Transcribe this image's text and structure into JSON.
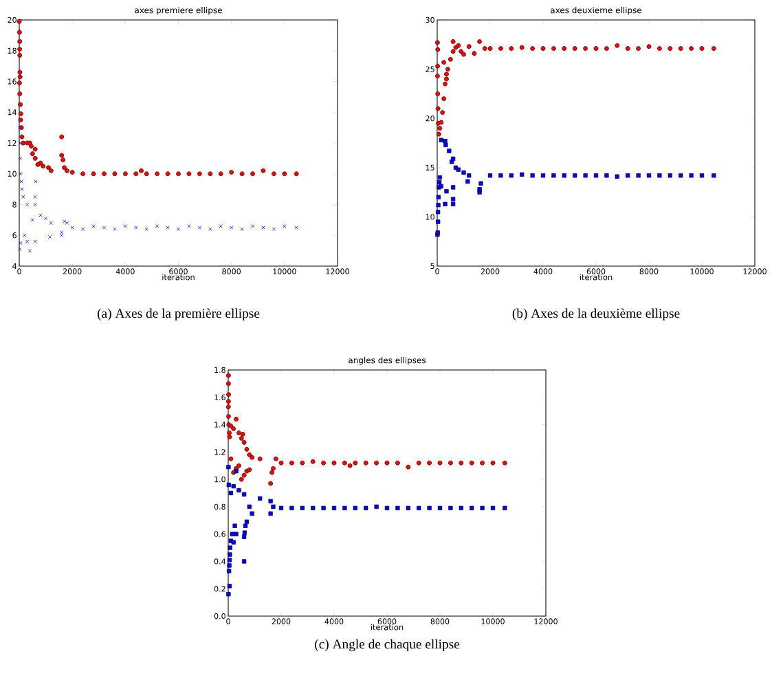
{
  "chart_data": [
    {
      "type": "scatter",
      "title": "axes premiere ellipse",
      "xlabel": "iteration",
      "annotations": [
        "(a) Axes de la première ellipse"
      ],
      "xlim": [
        0,
        12000
      ],
      "xticks": [
        0,
        2000,
        4000,
        6000,
        8000,
        10000,
        12000
      ],
      "ylim": [
        4,
        20
      ],
      "yticks": [
        4,
        6,
        8,
        10,
        12,
        14,
        16,
        18,
        20
      ],
      "grid": false,
      "series": [
        {
          "color": "#ff0000",
          "marker": "circle",
          "x": [
            0,
            10,
            20,
            15,
            20,
            25,
            30,
            10,
            20,
            40,
            60,
            50,
            80,
            100,
            150,
            300,
            400,
            450,
            500,
            600,
            600,
            700,
            800,
            900,
            1100,
            1200,
            1600,
            1600,
            1650,
            1700,
            1800,
            2000,
            2400,
            2800,
            3200,
            3600,
            4000,
            4400,
            4600,
            4800,
            5200,
            5600,
            6000,
            6400,
            6800,
            7200,
            7600,
            8000,
            8400,
            8800,
            9200,
            9600,
            10000,
            10450
          ],
          "values": [
            19.9,
            19.2,
            18.6,
            18.1,
            17.7,
            16.6,
            16.3,
            15.9,
            15.2,
            14.5,
            13.9,
            13.5,
            13.0,
            12.4,
            12.0,
            12.0,
            12.0,
            11.8,
            11.3,
            11.6,
            11.0,
            10.6,
            10.7,
            10.5,
            10.4,
            10.2,
            12.4,
            11.2,
            10.9,
            10.4,
            10.2,
            10.1,
            10.0,
            10.0,
            10.0,
            10.0,
            10.0,
            10.0,
            10.2,
            10.0,
            10.0,
            10.0,
            10.0,
            10.0,
            10.0,
            10.0,
            10.0,
            10.1,
            10.0,
            10.0,
            10.2,
            10.0,
            10.0,
            10.0
          ]
        },
        {
          "color": "#0000ff",
          "marker": "cross",
          "x": [
            20,
            30,
            40,
            50,
            80,
            100,
            150,
            300,
            600,
            620,
            600,
            800,
            1000,
            1200,
            1150,
            400,
            20,
            50,
            300,
            600,
            200,
            500,
            1600,
            1700,
            1800,
            1600,
            2000,
            2400,
            2800,
            3200,
            3600,
            4000,
            4400,
            4800,
            5200,
            5600,
            6000,
            6400,
            6800,
            7200,
            7600,
            8000,
            8400,
            8800,
            9200,
            9600,
            10000,
            10450
          ],
          "values": [
            13.0,
            12.0,
            11.0,
            10.0,
            9.5,
            9.0,
            8.5,
            8.0,
            8.5,
            9.5,
            8.0,
            7.3,
            7.1,
            6.8,
            5.9,
            5.0,
            5.1,
            5.5,
            5.6,
            5.6,
            6.0,
            7.0,
            6.0,
            6.9,
            6.8,
            6.2,
            6.5,
            6.4,
            6.6,
            6.5,
            6.4,
            6.6,
            6.5,
            6.4,
            6.6,
            6.5,
            6.4,
            6.6,
            6.5,
            6.4,
            6.6,
            6.5,
            6.4,
            6.6,
            6.5,
            6.4,
            6.6,
            6.5
          ]
        }
      ]
    },
    {
      "type": "scatter",
      "title": "axes deuxieme ellipse",
      "xlabel": "iteration",
      "annotations": [
        "(b) Axes de la deuxième ellipse"
      ],
      "xlim": [
        0,
        12000
      ],
      "xticks": [
        0,
        2000,
        4000,
        6000,
        8000,
        10000,
        12000
      ],
      "ylim": [
        5,
        30
      ],
      "yticks": [
        5,
        10,
        15,
        20,
        25,
        30
      ],
      "grid": false,
      "series": [
        {
          "color": "#ff0000",
          "marker": "circle",
          "x": [
            10,
            20,
            15,
            10,
            20,
            30,
            40,
            60,
            100,
            150,
            200,
            250,
            300,
            350,
            400,
            500,
            600,
            600,
            700,
            800,
            900,
            1000,
            1200,
            1400,
            1600,
            1800,
            250,
            350,
            2000,
            2400,
            2800,
            3200,
            3600,
            4000,
            4400,
            4800,
            5200,
            5600,
            6000,
            6400,
            6800,
            7200,
            7600,
            8000,
            8400,
            8800,
            9200,
            9600,
            10000,
            10450
          ],
          "values": [
            27.7,
            27.0,
            25.3,
            24.3,
            22.5,
            21.0,
            19.5,
            18.4,
            19.0,
            19.6,
            20.6,
            22.0,
            23.5,
            24.5,
            25.0,
            26.0,
            26.8,
            27.8,
            27.2,
            27.4,
            26.8,
            26.5,
            27.3,
            26.6,
            27.8,
            27.1,
            25.7,
            24.0,
            27.1,
            27.1,
            27.1,
            27.2,
            27.1,
            27.1,
            27.1,
            27.1,
            27.1,
            27.1,
            27.1,
            27.1,
            27.4,
            27.1,
            27.1,
            27.3,
            27.1,
            27.1,
            27.1,
            27.1,
            27.1,
            27.1
          ]
        },
        {
          "color": "#0000ff",
          "marker": "square",
          "x": [
            10,
            20,
            30,
            30,
            40,
            50,
            60,
            80,
            100,
            150,
            300,
            320,
            450,
            550,
            600,
            700,
            800,
            1000,
            1200,
            300,
            600,
            600,
            350,
            600,
            1600,
            1600,
            1650,
            1150,
            150,
            2000,
            2400,
            2800,
            3200,
            3600,
            4000,
            4400,
            4800,
            5200,
            5600,
            6000,
            6400,
            6800,
            7200,
            7600,
            8000,
            8400,
            8800,
            9200,
            9600,
            10000,
            10450
          ],
          "values": [
            8.2,
            8.4,
            9.5,
            10.5,
            11.2,
            12.0,
            13.0,
            13.5,
            14.0,
            17.8,
            17.7,
            17.3,
            16.7,
            15.6,
            15.9,
            15.0,
            14.8,
            14.5,
            14.2,
            11.3,
            11.3,
            11.8,
            12.6,
            13.0,
            12.5,
            12.8,
            13.4,
            13.6,
            13.1,
            14.2,
            14.2,
            14.2,
            14.3,
            14.2,
            14.2,
            14.2,
            14.2,
            14.2,
            14.2,
            14.2,
            14.2,
            14.1,
            14.2,
            14.2,
            14.2,
            14.2,
            14.2,
            14.2,
            14.2,
            14.2,
            14.2
          ]
        }
      ]
    },
    {
      "type": "scatter",
      "title": "angles des ellipses",
      "xlabel": "iteration",
      "annotations": [
        "(c) Angle de chaque ellipse"
      ],
      "xlim": [
        0,
        12000
      ],
      "xticks": [
        0,
        2000,
        4000,
        6000,
        8000,
        10000,
        12000
      ],
      "ylim": [
        0,
        1.8
      ],
      "yticks": [
        {
          "value": 0,
          "label": "0.0"
        },
        0.2,
        0.4,
        0.6,
        0.8,
        {
          "value": 1,
          "label": "1.0"
        },
        1.2,
        1.4,
        1.6,
        1.8
      ],
      "grid": false,
      "series": [
        {
          "color": "#ff0000",
          "marker": "circle",
          "x": [
            10,
            10,
            15,
            10,
            5,
            10,
            20,
            40,
            50,
            100,
            300,
            200,
            400,
            500,
            550,
            600,
            700,
            800,
            900,
            1200,
            1600,
            1650,
            1700,
            1800,
            500,
            600,
            700,
            800,
            200,
            300,
            400,
            100,
            2000,
            2400,
            2800,
            3200,
            3600,
            4000,
            4400,
            4600,
            4800,
            5200,
            5600,
            6000,
            6400,
            6800,
            7200,
            7600,
            8000,
            8400,
            8800,
            9200,
            9600,
            10000,
            10450
          ],
          "values": [
            1.76,
            1.7,
            1.62,
            1.57,
            1.53,
            1.46,
            1.4,
            1.34,
            1.31,
            1.39,
            1.44,
            1.37,
            1.34,
            1.3,
            1.33,
            1.27,
            1.22,
            1.18,
            1.16,
            1.15,
            0.97,
            1.05,
            1.08,
            1.15,
            1.0,
            1.03,
            1.06,
            1.07,
            1.05,
            1.08,
            1.1,
            1.15,
            1.12,
            1.12,
            1.12,
            1.13,
            1.12,
            1.12,
            1.12,
            1.1,
            1.12,
            1.12,
            1.12,
            1.12,
            1.12,
            1.09,
            1.12,
            1.12,
            1.12,
            1.12,
            1.12,
            1.12,
            1.12,
            1.12,
            1.12
          ]
        },
        {
          "color": "#0000ff",
          "marker": "square",
          "x": [
            10,
            50,
            30,
            40,
            50,
            60,
            70,
            100,
            150,
            250,
            300,
            200,
            600,
            600,
            620,
            650,
            700,
            10,
            20,
            100,
            300,
            200,
            400,
            600,
            800,
            900,
            1200,
            1600,
            1600,
            1700,
            2000,
            2400,
            2800,
            3200,
            3600,
            4000,
            4400,
            4800,
            5200,
            5600,
            6000,
            6400,
            6800,
            7200,
            7600,
            8000,
            8400,
            8800,
            9200,
            9600,
            10000,
            10450
          ],
          "values": [
            0.16,
            0.22,
            0.33,
            0.37,
            0.41,
            0.45,
            0.5,
            0.55,
            0.6,
            0.66,
            0.6,
            0.54,
            0.4,
            0.58,
            0.61,
            0.66,
            0.69,
            1.09,
            0.96,
            0.9,
            1.06,
            0.95,
            0.92,
            0.89,
            0.8,
            0.75,
            0.86,
            0.84,
            0.75,
            0.8,
            0.79,
            0.79,
            0.79,
            0.79,
            0.79,
            0.79,
            0.79,
            0.79,
            0.79,
            0.8,
            0.79,
            0.79,
            0.79,
            0.79,
            0.79,
            0.79,
            0.79,
            0.79,
            0.79,
            0.79,
            0.79,
            0.79
          ]
        }
      ]
    }
  ]
}
